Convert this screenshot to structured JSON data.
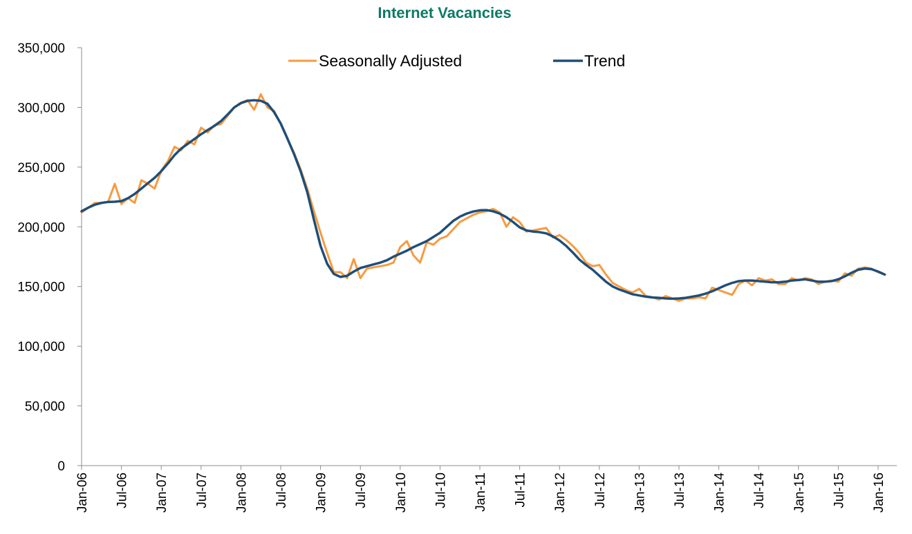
{
  "chart_data": {
    "type": "line",
    "title": "Internet Vacancies",
    "xlabel": "",
    "ylabel": "",
    "ylim": [
      0,
      350000
    ],
    "y_ticks": [
      "0",
      "50,000",
      "100,000",
      "150,000",
      "200,000",
      "250,000",
      "300,000",
      "350,000"
    ],
    "y_tick_values": [
      0,
      50000,
      100000,
      150000,
      200000,
      250000,
      300000,
      350000
    ],
    "x_tick_labels": [
      "Jan-06",
      "Jul-06",
      "Jan-07",
      "Jul-07",
      "Jan-08",
      "Jul-08",
      "Jan-09",
      "Jul-09",
      "Jan-10",
      "Jul-10",
      "Jan-11",
      "Jul-11",
      "Jan-12",
      "Jul-12",
      "Jan-13",
      "Jul-13",
      "Jan-14",
      "Jul-14",
      "Jan-15",
      "Jul-15",
      "Jan-16"
    ],
    "x_start": "Jan-06",
    "x_end": "Apr-16",
    "grid": false,
    "legend_position": "top",
    "colors": {
      "seasonally_adjusted": "#f79a3e",
      "trend": "#1f4e79",
      "title": "#0e7a64"
    },
    "series": [
      {
        "name": "Seasonally Adjusted",
        "values": [
          212000,
          216000,
          220000,
          220000,
          221000,
          236000,
          219000,
          224000,
          220000,
          239000,
          236000,
          232000,
          247000,
          255000,
          267000,
          264000,
          272000,
          269000,
          283000,
          279000,
          285000,
          286000,
          293000,
          300000,
          304000,
          306000,
          298000,
          311000,
          300000,
          297000,
          286000,
          274000,
          262000,
          248000,
          232000,
          213000,
          195000,
          178000,
          162000,
          162000,
          157000,
          173000,
          157000,
          165000,
          166000,
          167000,
          168000,
          170000,
          183000,
          188000,
          176000,
          170000,
          187000,
          185000,
          190000,
          192000,
          198000,
          204000,
          207000,
          210000,
          212000,
          213000,
          215000,
          212000,
          200000,
          208000,
          204000,
          196000,
          197000,
          198000,
          199000,
          191000,
          193000,
          189000,
          184000,
          178000,
          170000,
          167000,
          168000,
          160000,
          153000,
          150000,
          147000,
          145000,
          148000,
          142000,
          141000,
          139000,
          142000,
          140000,
          138000,
          140000,
          140000,
          141000,
          140000,
          149000,
          147000,
          145000,
          143000,
          152000,
          155000,
          151000,
          157000,
          155000,
          156000,
          152000,
          152000,
          157000,
          155000,
          157000,
          156000,
          152000,
          154000,
          155000,
          154000,
          161000,
          159000,
          165000,
          166000,
          165000,
          162000,
          160000
        ]
      },
      {
        "name": "Trend",
        "values": [
          213000,
          216000,
          218500,
          220000,
          220800,
          221000,
          221500,
          224000,
          227500,
          232000,
          236500,
          241000,
          246500,
          253000,
          260000,
          265500,
          269500,
          273500,
          277500,
          281000,
          284500,
          288500,
          294000,
          300000,
          303500,
          305500,
          306000,
          305500,
          303000,
          296000,
          286500,
          274000,
          261000,
          246500,
          229000,
          206000,
          184000,
          169000,
          160500,
          158000,
          159000,
          162500,
          165500,
          167000,
          168500,
          170000,
          172000,
          175000,
          177500,
          180000,
          183000,
          185500,
          188000,
          191500,
          195000,
          200000,
          205000,
          208500,
          211000,
          212800,
          213800,
          214000,
          213000,
          211000,
          208000,
          204000,
          199500,
          197000,
          196000,
          195500,
          194500,
          192000,
          188500,
          184000,
          178500,
          172500,
          168000,
          164000,
          159000,
          154000,
          150000,
          147500,
          145500,
          143500,
          142500,
          141500,
          140800,
          140500,
          140000,
          139800,
          140000,
          140500,
          141500,
          142500,
          144000,
          146000,
          148500,
          151000,
          153000,
          154500,
          155000,
          155000,
          154500,
          154000,
          153500,
          153500,
          154000,
          155000,
          155500,
          156000,
          155000,
          154000,
          154000,
          154500,
          156000,
          158500,
          161500,
          164000,
          165000,
          164500,
          162500,
          160000
        ]
      }
    ]
  }
}
